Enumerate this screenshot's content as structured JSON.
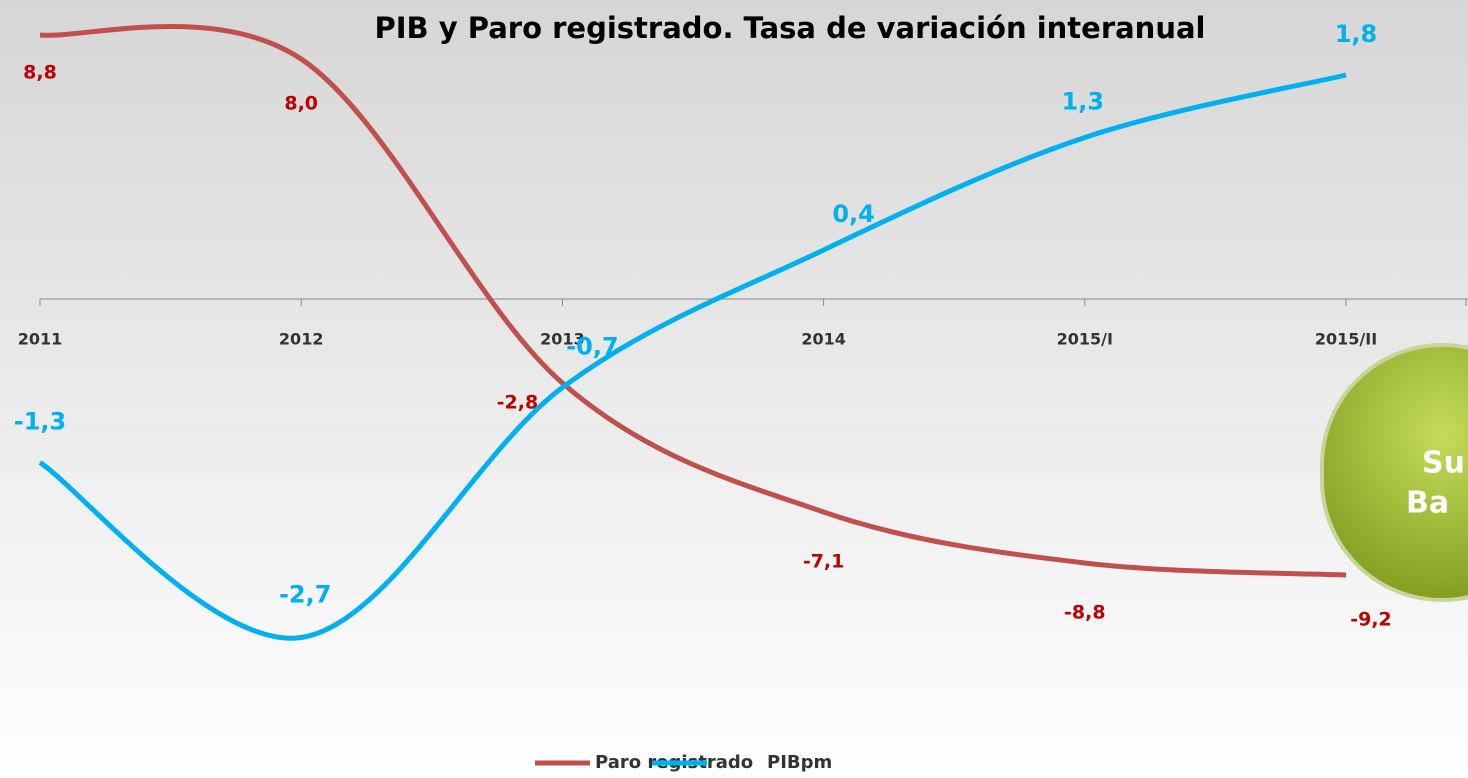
{
  "chart_data": {
    "type": "line",
    "title": "PIB y Paro registrado. Tasa de variación interanual",
    "categories": [
      "2011",
      "2012",
      "2013",
      "2014",
      "2015/I",
      "2015/II"
    ],
    "series": [
      {
        "name": "Paro registrado",
        "color": "#c0504d",
        "values": [
          8.8,
          8.0,
          -2.8,
          -7.1,
          -8.8,
          -9.2
        ],
        "value_labels": [
          "8,8",
          "8,0",
          "-2,8",
          "-7,1",
          "-8,8",
          "-9,2"
        ],
        "label_color": "#c00000"
      },
      {
        "name": "PIBpm",
        "color": "#00b0f0",
        "axis": "y2",
        "values": [
          -1.3,
          -2.7,
          -0.7,
          0.4,
          1.3,
          1.8
        ],
        "value_labels": [
          "-1,3",
          "-2,7",
          "-0,7",
          "0,4",
          "1,3",
          "1,8"
        ],
        "label_color": "#00b0f0"
      }
    ],
    "ylim": [
      -14.7,
      9.3
    ],
    "y2lim": [
      -3.52,
      2.24
    ],
    "button": {
      "line1": "Su",
      "line2": "Ba"
    }
  }
}
